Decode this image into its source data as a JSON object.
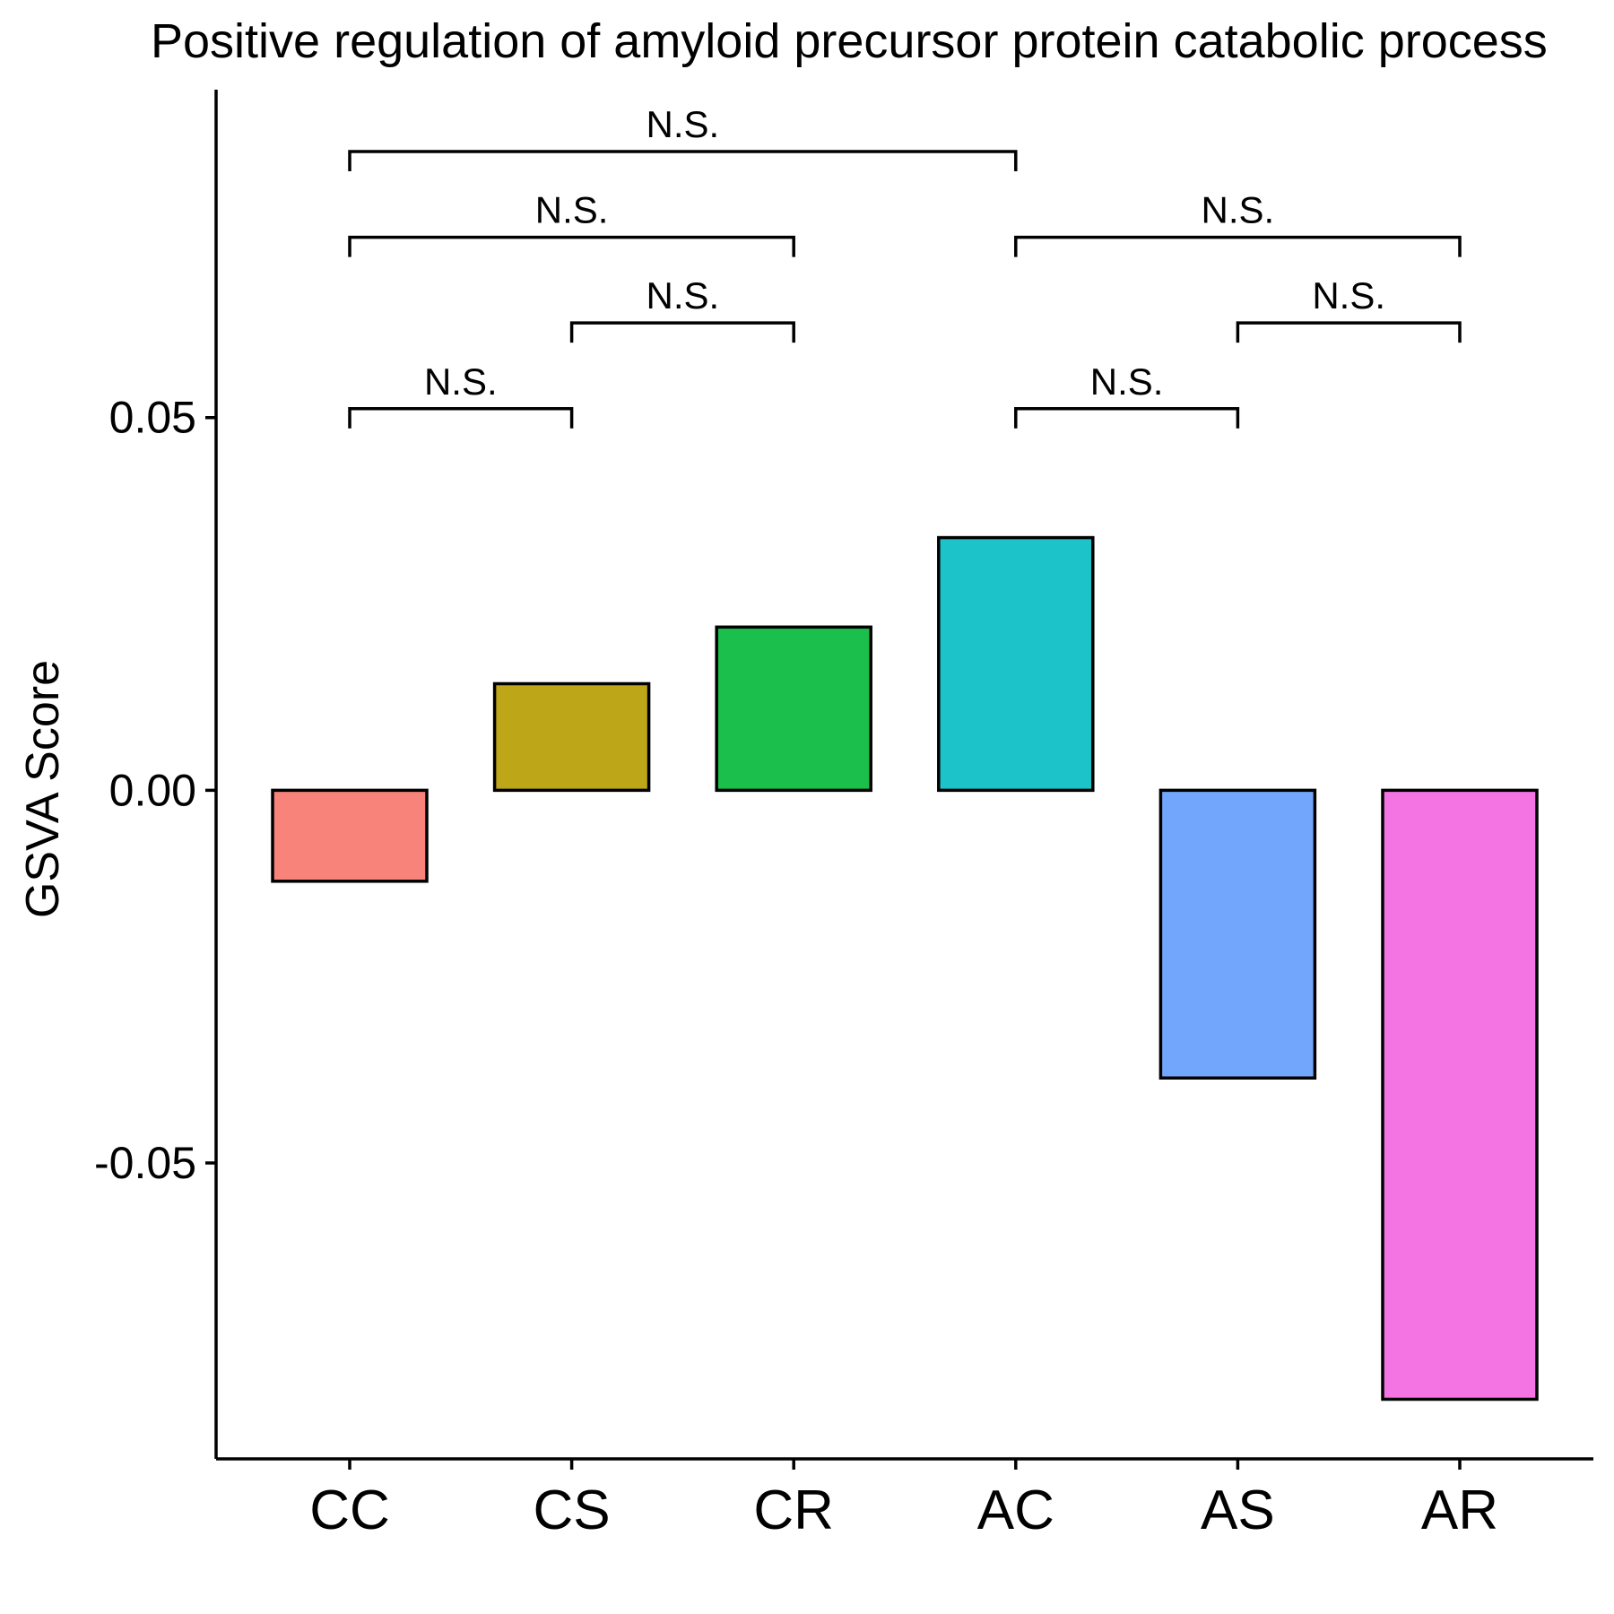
{
  "chart_data": {
    "type": "bar",
    "title": "Positive regulation of amyloid precursor protein catabolic process",
    "xlabel": "",
    "ylabel": "GSVA Score",
    "categories": [
      "CC",
      "CS",
      "CR",
      "AC",
      "AS",
      "AR"
    ],
    "values": [
      -0.0122,
      0.0143,
      0.0219,
      0.0339,
      -0.0386,
      -0.0817
    ],
    "colors": [
      "#F8837B",
      "#BDA617",
      "#1BBF4B",
      "#1CC4C9",
      "#72A6FC",
      "#F574E3"
    ],
    "ylim": [
      -0.0897,
      0.094
    ],
    "yticks": [
      -0.05,
      0.0,
      0.05
    ],
    "ytick_labels": [
      "-0.05",
      "0.00",
      "0.05"
    ],
    "grid": false,
    "legend": "none",
    "comparisons": [
      {
        "from": "CC",
        "to": "CS",
        "label": "N.S.",
        "y": 0.0512
      },
      {
        "from": "CS",
        "to": "CR",
        "label": "N.S.",
        "y": 0.0627
      },
      {
        "from": "CC",
        "to": "CR",
        "label": "N.S.",
        "y": 0.0742
      },
      {
        "from": "CC",
        "to": "AC",
        "label": "N.S.",
        "y": 0.0857
      },
      {
        "from": "AC",
        "to": "AS",
        "label": "N.S.",
        "y": 0.0512
      },
      {
        "from": "AS",
        "to": "AR",
        "label": "N.S.",
        "y": 0.0627
      },
      {
        "from": "AC",
        "to": "AR",
        "label": "N.S.",
        "y": 0.0742
      }
    ]
  }
}
